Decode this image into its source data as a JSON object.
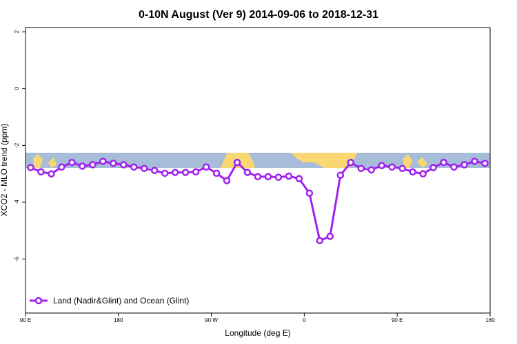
{
  "chart_data": {
    "type": "line",
    "title": "0-10N August (Ver 9)   2014-09-06 to 2018-12-31",
    "xlabel": "Longitude (deg E)",
    "ylabel": "XCO2 - MLO trend (ppm)",
    "x": [
      95,
      105,
      115,
      125,
      135,
      145,
      155,
      165,
      175,
      185,
      195,
      205,
      215,
      225,
      235,
      245,
      255,
      265,
      275,
      285,
      295,
      305,
      315,
      325,
      335,
      345,
      355,
      365,
      375,
      385,
      395,
      405,
      415,
      425,
      435,
      445,
      455,
      465,
      475,
      485,
      495,
      505,
      515,
      525,
      535
    ],
    "series": [
      {
        "name": "Land (Nadir&Glint) and Ocean (Glint)",
        "color": "#a020f0",
        "values": [
          -2.78,
          -2.93,
          -3.0,
          -2.76,
          -2.6,
          -2.73,
          -2.68,
          -2.56,
          -2.63,
          -2.68,
          -2.76,
          -2.81,
          -2.88,
          -2.98,
          -2.95,
          -2.95,
          -2.93,
          -2.76,
          -2.98,
          -3.24,
          -2.6,
          -2.95,
          -3.1,
          -3.1,
          -3.12,
          -3.08,
          -3.17,
          -3.68,
          -5.35,
          -5.2,
          -3.05,
          -2.6,
          -2.81,
          -2.86,
          -2.71,
          -2.76,
          -2.81,
          -2.93,
          -3.0,
          -2.78,
          -2.6,
          -2.76,
          -2.68,
          -2.56,
          -2.63
        ]
      }
    ],
    "xlim": [
      90,
      540
    ],
    "xticks": [
      {
        "value": 90,
        "label": "90 E"
      },
      180,
      {
        "value": 270,
        "label": "90 W"
      },
      {
        "value": 360,
        "label": "0"
      },
      {
        "value": 450,
        "label": "90 E"
      },
      {
        "value": 540,
        "label": "180"
      }
    ],
    "ylim": [
      -7.9,
      2.15
    ],
    "yticks": [
      2,
      0,
      -2,
      -4,
      -6
    ],
    "legend": "bottom-left"
  }
}
